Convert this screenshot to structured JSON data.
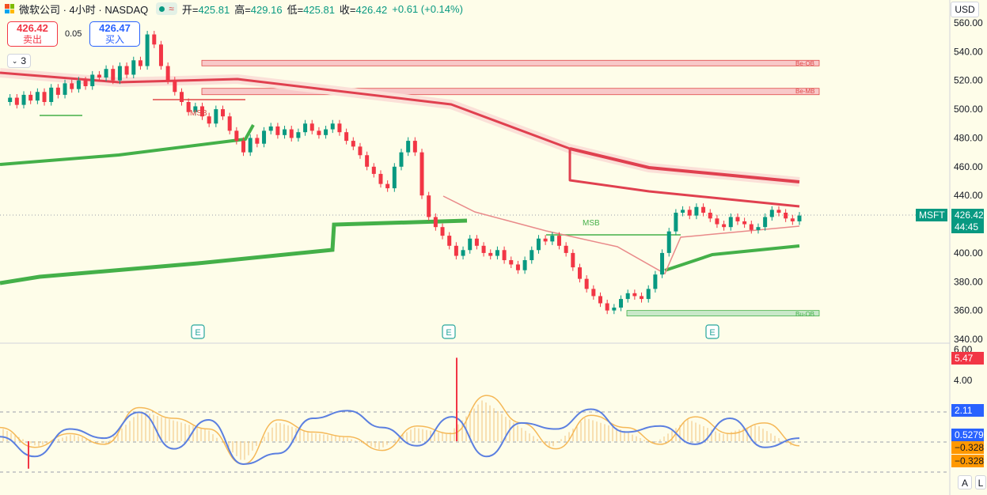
{
  "header": {
    "title": "微软公司 · 4小时 · NASDAQ",
    "open_label": "开=",
    "open": "425.81",
    "high_label": "高=",
    "high": "429.16",
    "low_label": "低=",
    "low": "425.81",
    "close_label": "收=",
    "close": "426.42",
    "change": "+0.61 (+0.14%)"
  },
  "trade": {
    "sell_price": "426.42",
    "sell_label": "卖出",
    "spread": "0.05",
    "buy_price": "426.47",
    "buy_label": "买入"
  },
  "collapse_count": "3",
  "currency": "USD",
  "symbol_tag": {
    "symbol": "MSFT",
    "price": "426.42",
    "countdown": "44:45"
  },
  "annotations": {
    "msb_left": "MSB",
    "msb_right": "MSB",
    "zone_top": "Be-OB",
    "zone_mid": "Be-MB",
    "zone_bottom": "Bu-OB",
    "earnings": "E"
  },
  "osc_badges": {
    "red": "5.47",
    "blue_top": "2.11",
    "blue_mid": "0.5279",
    "orange_1": "−0.328",
    "orange_2": "−0.328"
  },
  "scale_buttons": {
    "auto": "A",
    "log": "L"
  },
  "colors": {
    "up": "#089981",
    "down": "#f23645",
    "bg": "#fefde9",
    "thick_red": "#e0404f",
    "thick_green": "#44b049",
    "osc_blue": "#5b7fe0",
    "osc_orange": "#f5b857"
  },
  "chart_data": [
    {
      "type": "candlestick",
      "title": "微软公司 · 4小时 · NASDAQ",
      "y_ticks": [
        340,
        360,
        380,
        400,
        420,
        440,
        460,
        480,
        500,
        520,
        540,
        560
      ],
      "ylim": [
        340,
        560
      ],
      "close_path": [
        505,
        508,
        503,
        510,
        506,
        512,
        505,
        515,
        510,
        518,
        514,
        520,
        516,
        524,
        522,
        528,
        520,
        530,
        524,
        534,
        530,
        552,
        545,
        530,
        520,
        512,
        505,
        498,
        502,
        495,
        490,
        500,
        495,
        485,
        478,
        470,
        480,
        476,
        485,
        488,
        482,
        486,
        480,
        484,
        490,
        485,
        482,
        486,
        490,
        484,
        478,
        474,
        468,
        460,
        455,
        448,
        445,
        460,
        470,
        478,
        470,
        440,
        425,
        418,
        412,
        405,
        398,
        402,
        410,
        405,
        400,
        398,
        402,
        395,
        392,
        388,
        395,
        402,
        410,
        408,
        412,
        405,
        400,
        390,
        382,
        375,
        370,
        365,
        360,
        362,
        368,
        372,
        370,
        368,
        375,
        385,
        400,
        415,
        428,
        430,
        426,
        432,
        428,
        424,
        420,
        418,
        425,
        422,
        420,
        416,
        418,
        425,
        430,
        428,
        424,
        422,
        426
      ],
      "hlines": [
        {
          "label": "Be-OB",
          "y": 532
        },
        {
          "label": "Be-MB",
          "y": 512
        },
        {
          "label": "Bu-OB",
          "y": 358
        }
      ],
      "last_price": 426.42
    },
    {
      "type": "line",
      "series": [
        {
          "values": [
            0.3,
            -1.0,
            0.8,
            0.2,
            1.9,
            -0.5,
            1.4,
            -1.5,
            -0.8,
            1.5,
            2.0,
            0.9,
            -0.3,
            1.6,
            -1.0,
            1.2,
            0.8,
            2.1,
            0.6,
            1.0,
            -0.2,
            1.5,
            -0.4,
            0.2
          ]
        },
        {
          "values": [
            0.9,
            -0.4,
            0.5,
            -0.2,
            2.2,
            1.5,
            0.8,
            -1.5,
            1.4,
            0.6,
            0.3,
            -0.6,
            1.0,
            0.5,
            3.0,
            1.2,
            -0.5,
            1.7,
            0.9,
            -0.2,
            1.6,
            0.5,
            1.2,
            -0.3
          ]
        }
      ],
      "histogram_spikes": [
        -1.8,
        5.47
      ],
      "y_ticks": [
        4.0,
        6.0
      ],
      "ylim": [
        -2,
        6
      ],
      "levels": [
        2.11,
        0.5279,
        -0.328
      ]
    }
  ],
  "axis_labels": [
    "340.00",
    "360.00",
    "380.00",
    "400.00",
    "420.00",
    "440.00",
    "460.00",
    "480.00",
    "500.00",
    "520.00",
    "540.00",
    "560.00"
  ],
  "osc_axis_labels": [
    "4.00",
    "6.00"
  ]
}
